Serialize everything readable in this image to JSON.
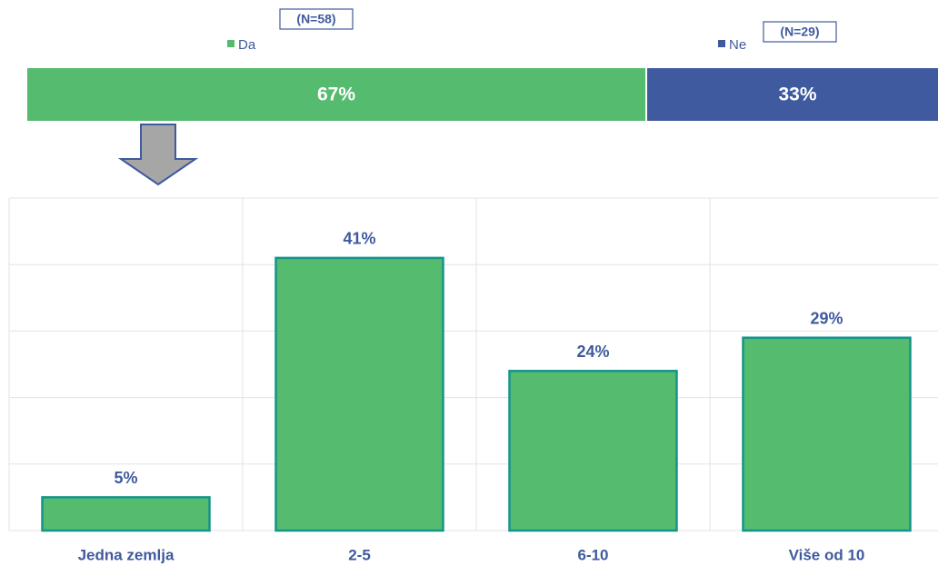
{
  "chart_data": [
    {
      "type": "stacked_bar_horizontal",
      "xlim": [
        0,
        100
      ],
      "series": [
        {
          "name": "Da",
          "color": "#55bb6f",
          "values": [
            67
          ],
          "value_labels": [
            "67%"
          ]
        },
        {
          "name": "Ne",
          "color": "#3f5a9e",
          "values": [
            33
          ],
          "value_labels": [
            "33%"
          ]
        }
      ],
      "annotations": [
        "(N=58)",
        "(N=29)"
      ]
    },
    {
      "type": "bar",
      "categories": [
        "Jedna zemlja",
        "2-5",
        "6-10",
        "Više od 10"
      ],
      "values": [
        5,
        41,
        24,
        29
      ],
      "value_labels": [
        "5%",
        "41%",
        "24%",
        "29%"
      ],
      "color": "#55bb6f",
      "edge_color": "#14958a",
      "ylim": [
        0,
        50
      ],
      "yticks": [
        0,
        10,
        20,
        30,
        40,
        50
      ],
      "grid": true
    }
  ]
}
